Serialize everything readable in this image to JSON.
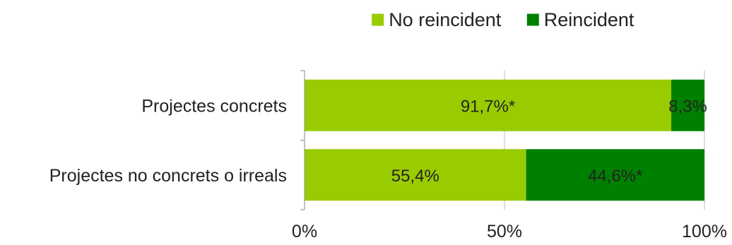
{
  "chart_data": {
    "type": "bar",
    "orientation": "horizontal",
    "stacked": true,
    "categories": [
      "Projectes concrets",
      "Projectes no concrets o irreals"
    ],
    "series": [
      {
        "name": "No reincident",
        "color": "#99cc00",
        "values": [
          91.7,
          55.4
        ],
        "labels": [
          "91,7%*",
          "55,4%"
        ]
      },
      {
        "name": "Reincident",
        "color": "#008000",
        "values": [
          8.3,
          44.6
        ],
        "labels": [
          "8,3%",
          "44,6%*"
        ]
      }
    ],
    "xlim": [
      0,
      100
    ],
    "x_ticks": [
      0,
      50,
      100
    ],
    "x_tick_labels": [
      "0%",
      "50%",
      "100%"
    ],
    "grid": true,
    "legend": "top"
  }
}
